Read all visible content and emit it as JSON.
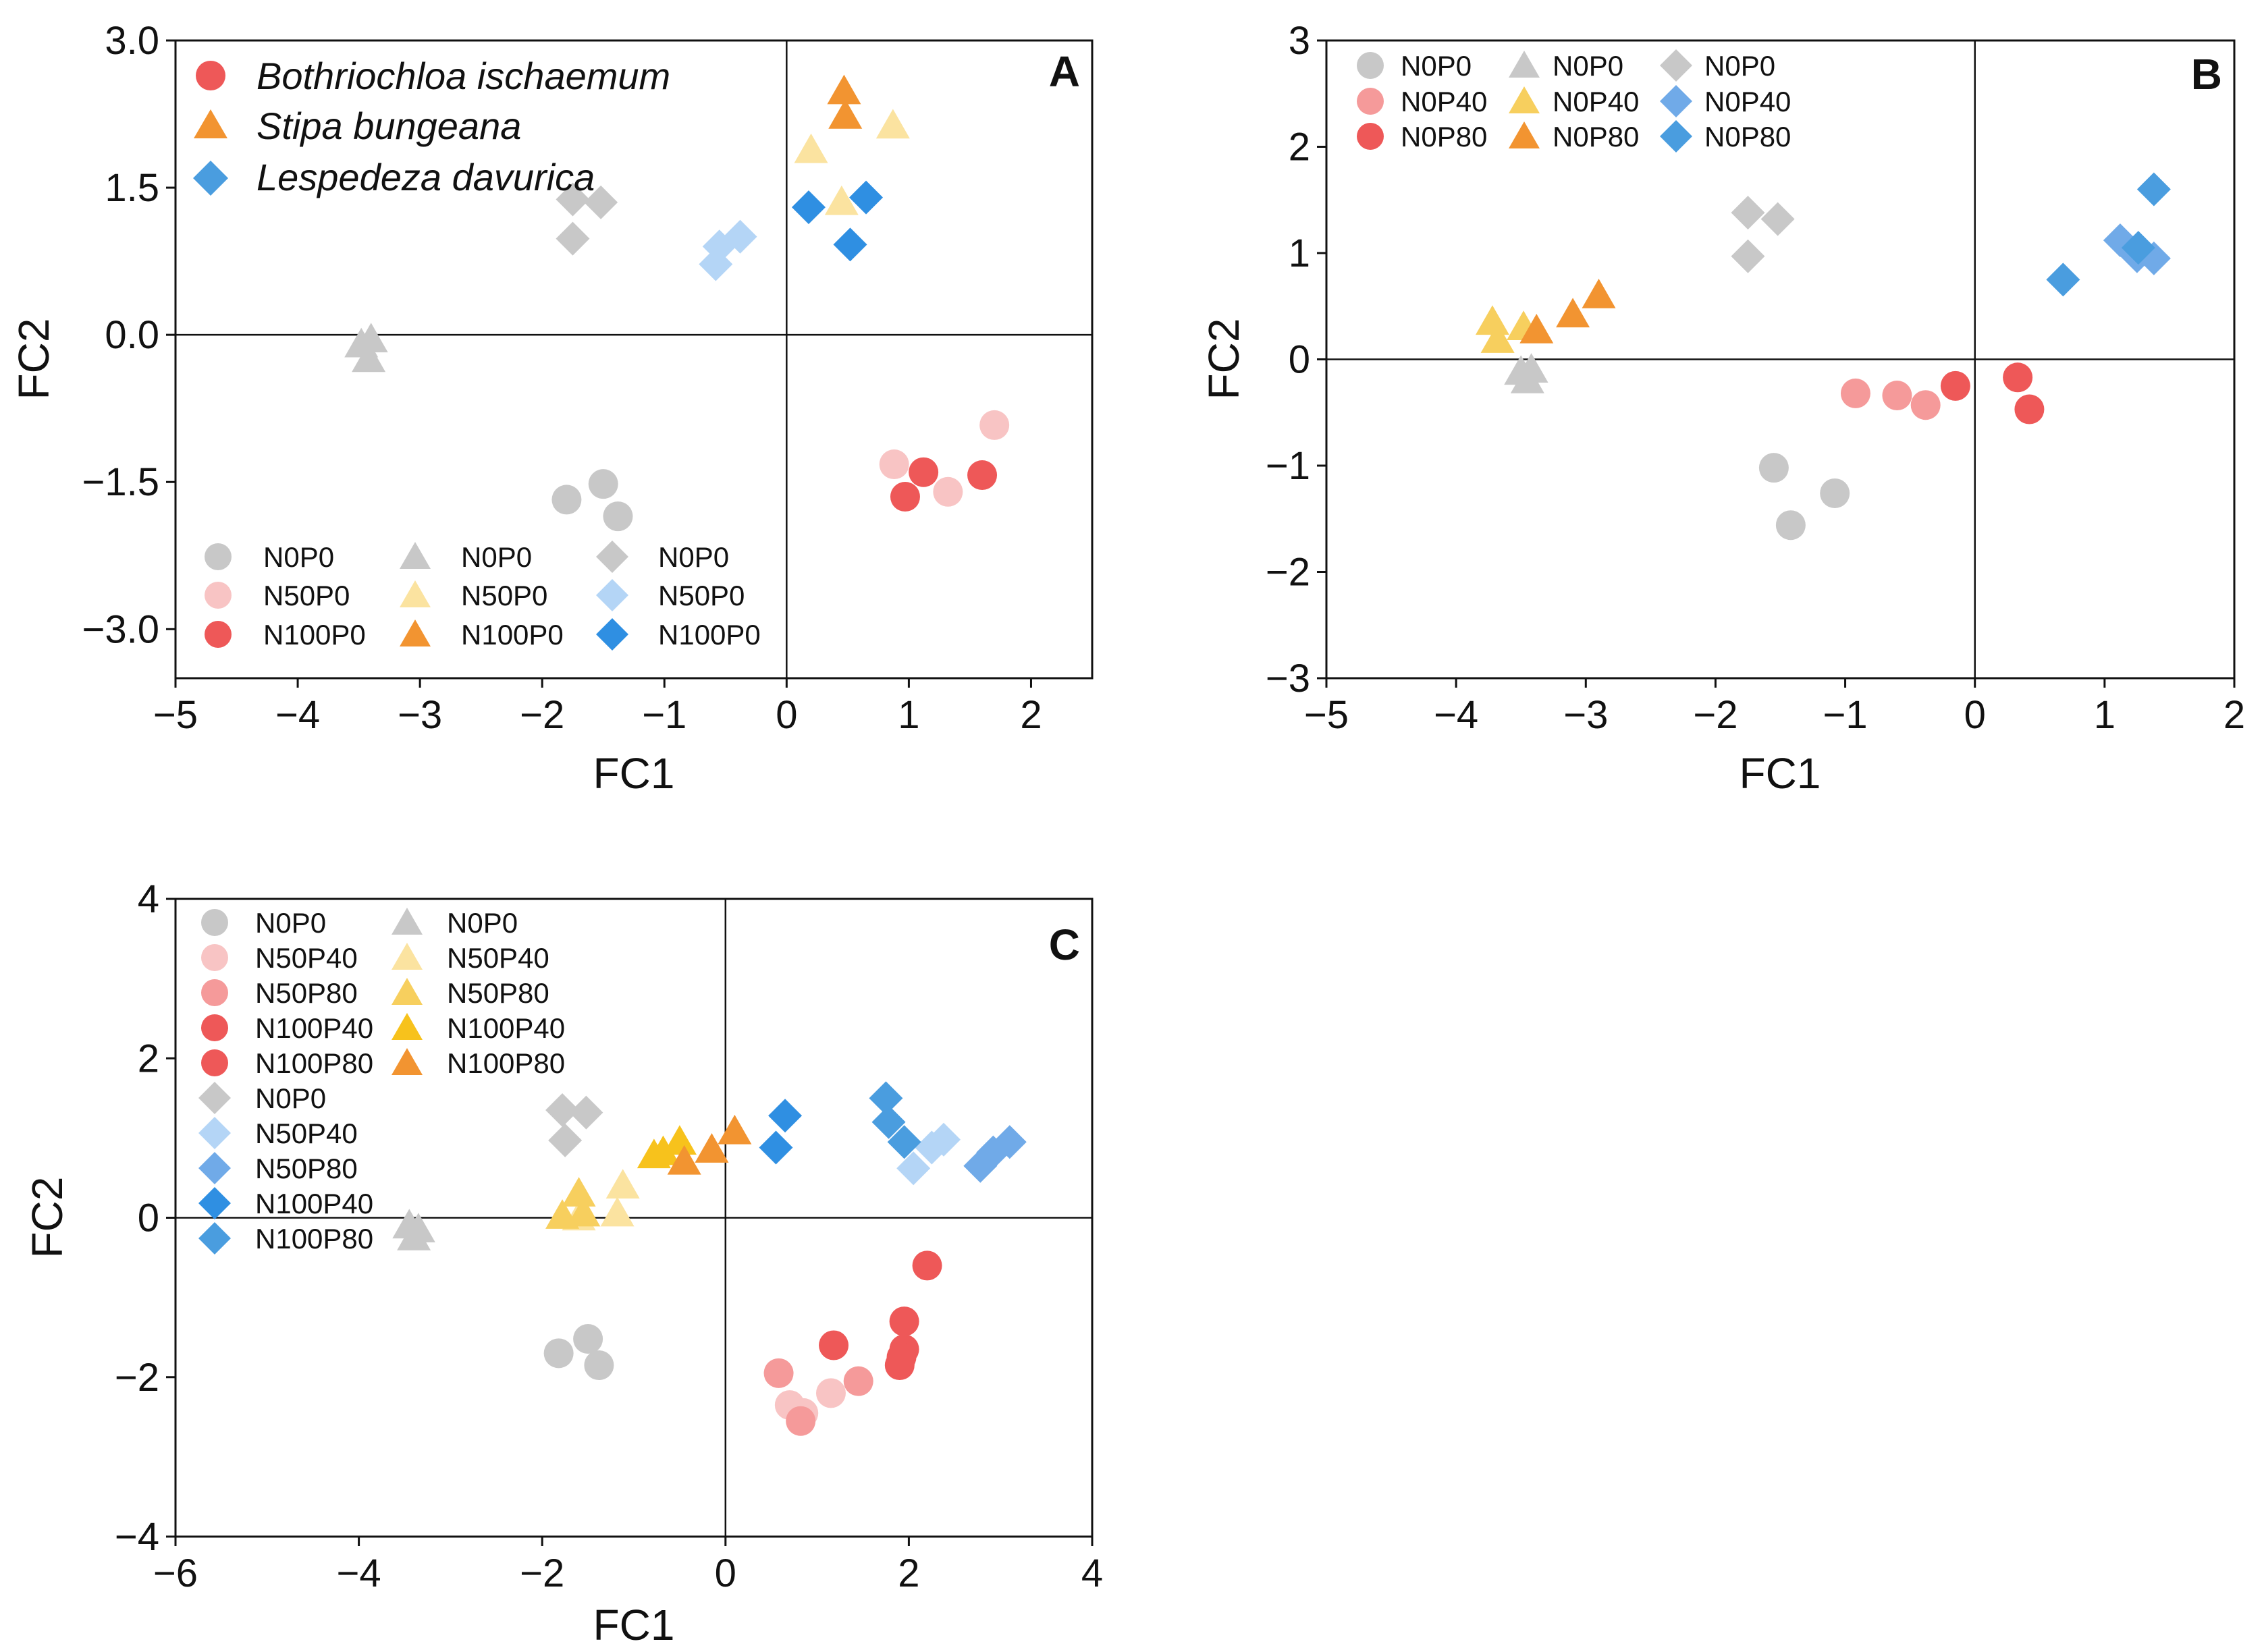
{
  "colors": {
    "gray": "#c8c8c8",
    "pink_light": "#f8c4c4",
    "pink": "#f59a9a",
    "red": "#ee5858",
    "yellow_light": "#fbe3a0",
    "yellow": "#f7cf5e",
    "gold": "#f7c21c",
    "orange": "#f29431",
    "blue_light": "#b4d5f6",
    "blue_mid": "#70aae8",
    "blue": "#2f8fe2",
    "blue_med": "#4a9ddf"
  },
  "chart_data": [
    {
      "id": "A",
      "type": "scatter",
      "panel_label": "A",
      "xlabel": "FC1",
      "ylabel": "FC2",
      "xlim": [
        -5,
        2.5
      ],
      "ylim": [
        -3.5,
        3.0
      ],
      "xticks": [
        -5,
        -4,
        -3,
        -2,
        -1,
        0,
        1,
        2
      ],
      "yticks": [
        -3.0,
        -1.5,
        0.0,
        1.5,
        3.0
      ],
      "xtick_labels": [
        "−5",
        "−4",
        "−3",
        "−2",
        "−1",
        "0",
        "1",
        "2"
      ],
      "ytick_labels": [
        "−3.0",
        "−1.5",
        "0.0",
        "1.5",
        "3.0"
      ],
      "zero_lines": true,
      "species_legend": [
        {
          "label": "Bothriochloa ischaemum",
          "shape": "circle",
          "color": "#ee5858"
        },
        {
          "label": "Stipa bungeana",
          "shape": "triangle",
          "color": "#f29431"
        },
        {
          "label": "Lespedeza davurica",
          "shape": "diamond",
          "color": "#4a9ddf"
        }
      ],
      "treatment_legend": [
        {
          "label": "N0P0",
          "shape": "circle",
          "color": "#c8c8c8"
        },
        {
          "label": "N50P0",
          "shape": "circle",
          "color": "#f8c4c4"
        },
        {
          "label": "N100P0",
          "shape": "circle",
          "color": "#ee5858"
        },
        {
          "label": "N0P0",
          "shape": "triangle",
          "color": "#c8c8c8"
        },
        {
          "label": "N50P0",
          "shape": "triangle",
          "color": "#fbe3a0"
        },
        {
          "label": "N100P0",
          "shape": "triangle",
          "color": "#f29431"
        },
        {
          "label": "N0P0",
          "shape": "diamond",
          "color": "#c8c8c8"
        },
        {
          "label": "N50P0",
          "shape": "diamond",
          "color": "#b4d5f6"
        },
        {
          "label": "N100P0",
          "shape": "diamond",
          "color": "#2f8fe2"
        }
      ],
      "series": [
        {
          "name": "B. ischaemum N0P0",
          "shape": "circle",
          "color": "#c8c8c8",
          "points": [
            [
              -1.8,
              -1.68
            ],
            [
              -1.5,
              -1.52
            ],
            [
              -1.38,
              -1.85
            ]
          ]
        },
        {
          "name": "B. ischaemum N50P0",
          "shape": "circle",
          "color": "#f8c4c4",
          "points": [
            [
              0.88,
              -1.32
            ],
            [
              1.32,
              -1.6
            ],
            [
              1.7,
              -0.92
            ]
          ]
        },
        {
          "name": "B. ischaemum N100P0",
          "shape": "circle",
          "color": "#ee5858",
          "points": [
            [
              0.97,
              -1.65
            ],
            [
              1.12,
              -1.4
            ],
            [
              1.6,
              -1.43
            ]
          ]
        },
        {
          "name": "S. bungeana N0P0",
          "shape": "triangle",
          "color": "#c8c8c8",
          "points": [
            [
              -3.48,
              -0.1
            ],
            [
              -3.42,
              -0.25
            ],
            [
              -3.4,
              -0.05
            ]
          ]
        },
        {
          "name": "S. bungeana N50P0",
          "shape": "triangle",
          "color": "#fbe3a0",
          "points": [
            [
              0.2,
              1.88
            ],
            [
              0.45,
              1.35
            ],
            [
              0.87,
              2.13
            ]
          ]
        },
        {
          "name": "S. bungeana N100P0",
          "shape": "triangle",
          "color": "#f29431",
          "points": [
            [
              0.47,
              2.48
            ],
            [
              0.48,
              2.23
            ]
          ]
        },
        {
          "name": "L. davurica N0P0",
          "shape": "diamond",
          "color": "#c8c8c8",
          "points": [
            [
              -1.75,
              0.98
            ],
            [
              -1.75,
              1.38
            ],
            [
              -1.52,
              1.35
            ]
          ]
        },
        {
          "name": "L. davurica N50P0",
          "shape": "diamond",
          "color": "#b4d5f6",
          "points": [
            [
              -0.58,
              0.72
            ],
            [
              -0.55,
              0.9
            ],
            [
              -0.38,
              1.0
            ]
          ]
        },
        {
          "name": "L. davurica N100P0",
          "shape": "diamond",
          "color": "#2f8fe2",
          "points": [
            [
              0.18,
              1.3
            ],
            [
              0.52,
              0.92
            ],
            [
              0.65,
              1.4
            ]
          ]
        }
      ]
    },
    {
      "id": "B",
      "type": "scatter",
      "panel_label": "B",
      "xlabel": "FC1",
      "ylabel": "FC2",
      "xlim": [
        -5,
        2
      ],
      "ylim": [
        -3,
        3
      ],
      "xticks": [
        -5,
        -4,
        -3,
        -2,
        -1,
        0,
        1,
        2
      ],
      "yticks": [
        -3,
        -2,
        -1,
        0,
        1,
        2,
        3
      ],
      "xtick_labels": [
        "−5",
        "−4",
        "−3",
        "−2",
        "−1",
        "0",
        "1",
        "2"
      ],
      "ytick_labels": [
        "−3",
        "−2",
        "−1",
        "0",
        "1",
        "2",
        "3"
      ],
      "zero_lines": true,
      "treatment_legend": [
        {
          "label": "N0P0",
          "shape": "circle",
          "color": "#c8c8c8"
        },
        {
          "label": "N0P40",
          "shape": "circle",
          "color": "#f59a9a"
        },
        {
          "label": "N0P80",
          "shape": "circle",
          "color": "#ee5858"
        },
        {
          "label": "N0P0",
          "shape": "triangle",
          "color": "#c8c8c8"
        },
        {
          "label": "N0P40",
          "shape": "triangle",
          "color": "#f7cf5e"
        },
        {
          "label": "N0P80",
          "shape": "triangle",
          "color": "#f29431"
        },
        {
          "label": "N0P0",
          "shape": "diamond",
          "color": "#c8c8c8"
        },
        {
          "label": "N0P40",
          "shape": "diamond",
          "color": "#70aae8"
        },
        {
          "label": "N0P80",
          "shape": "diamond",
          "color": "#4a9ddf"
        }
      ],
      "series": [
        {
          "name": "B. ischaemum N0P0",
          "shape": "circle",
          "color": "#c8c8c8",
          "points": [
            [
              -1.55,
              -1.02
            ],
            [
              -1.42,
              -1.56
            ],
            [
              -1.08,
              -1.26
            ]
          ]
        },
        {
          "name": "B. ischaemum N0P40",
          "shape": "circle",
          "color": "#f59a9a",
          "points": [
            [
              -0.92,
              -0.32
            ],
            [
              -0.6,
              -0.34
            ],
            [
              -0.38,
              -0.43
            ]
          ]
        },
        {
          "name": "B. ischaemum N0P80",
          "shape": "circle",
          "color": "#ee5858",
          "points": [
            [
              -0.15,
              -0.25
            ],
            [
              0.33,
              -0.17
            ],
            [
              0.42,
              -0.47
            ]
          ]
        },
        {
          "name": "S. bungeana N0P0",
          "shape": "triangle",
          "color": "#c8c8c8",
          "points": [
            [
              -3.5,
              -0.12
            ],
            [
              -3.45,
              -0.2
            ],
            [
              -3.42,
              -0.1
            ]
          ]
        },
        {
          "name": "S. bungeana N0P40",
          "shape": "triangle",
          "color": "#f7cf5e",
          "points": [
            [
              -3.72,
              0.35
            ],
            [
              -3.68,
              0.18
            ],
            [
              -3.48,
              0.3
            ]
          ]
        },
        {
          "name": "S. bungeana N0P80",
          "shape": "triangle",
          "color": "#f29431",
          "points": [
            [
              -3.38,
              0.27
            ],
            [
              -3.1,
              0.42
            ],
            [
              -2.9,
              0.6
            ]
          ]
        },
        {
          "name": "L. davurica N0P0",
          "shape": "diamond",
          "color": "#c8c8c8",
          "points": [
            [
              -1.75,
              1.38
            ],
            [
              -1.52,
              1.32
            ],
            [
              -1.75,
              0.97
            ]
          ]
        },
        {
          "name": "L. davurica N0P40",
          "shape": "diamond",
          "color": "#70aae8",
          "points": [
            [
              1.12,
              1.12
            ],
            [
              1.25,
              0.97
            ],
            [
              1.38,
              0.95
            ]
          ]
        },
        {
          "name": "L. davurica N0P80",
          "shape": "diamond",
          "color": "#4a9ddf",
          "points": [
            [
              0.68,
              0.75
            ],
            [
              1.38,
              1.6
            ],
            [
              1.26,
              1.05
            ]
          ]
        }
      ]
    },
    {
      "id": "C",
      "type": "scatter",
      "panel_label": "C",
      "xlabel": "FC1",
      "ylabel": "FC2",
      "xlim": [
        -6,
        4
      ],
      "ylim": [
        -4,
        4
      ],
      "xticks": [
        -6,
        -4,
        -2,
        0,
        2,
        4
      ],
      "yticks": [
        -4,
        -2,
        0,
        2,
        4
      ],
      "xtick_labels": [
        "−6",
        "−4",
        "−2",
        "0",
        "2",
        "4"
      ],
      "ytick_labels": [
        "−4",
        "−2",
        "0",
        "2",
        "4"
      ],
      "zero_lines": true,
      "treatment_legend": [
        {
          "label": "N0P0",
          "shape": "circle",
          "color": "#c8c8c8"
        },
        {
          "label": "N50P40",
          "shape": "circle",
          "color": "#f8c4c4"
        },
        {
          "label": "N50P80",
          "shape": "circle",
          "color": "#f59a9a"
        },
        {
          "label": "N100P40",
          "shape": "circle",
          "color": "#ee5858"
        },
        {
          "label": "N100P80",
          "shape": "circle",
          "color": "#ee5858"
        },
        {
          "label": "N0P0",
          "shape": "diamond",
          "color": "#c8c8c8"
        },
        {
          "label": "N50P40",
          "shape": "diamond",
          "color": "#b4d5f6"
        },
        {
          "label": "N50P80",
          "shape": "diamond",
          "color": "#70aae8"
        },
        {
          "label": "N100P40",
          "shape": "diamond",
          "color": "#2f8fe2"
        },
        {
          "label": "N100P80",
          "shape": "diamond",
          "color": "#4a9ddf"
        },
        {
          "label": "N0P0",
          "shape": "triangle",
          "color": "#c8c8c8"
        },
        {
          "label": "N50P40",
          "shape": "triangle",
          "color": "#fbe3a0"
        },
        {
          "label": "N50P80",
          "shape": "triangle",
          "color": "#f7cf5e"
        },
        {
          "label": "N100P40",
          "shape": "triangle",
          "color": "#f7c21c"
        },
        {
          "label": "N100P80",
          "shape": "triangle",
          "color": "#f29431"
        }
      ],
      "series": [
        {
          "name": "B. ischaemum N0P0",
          "shape": "circle",
          "color": "#c8c8c8",
          "points": [
            [
              -1.82,
              -1.7
            ],
            [
              -1.5,
              -1.52
            ],
            [
              -1.38,
              -1.85
            ]
          ]
        },
        {
          "name": "B. ischaemum N50P40",
          "shape": "circle",
          "color": "#f8c4c4",
          "points": [
            [
              0.7,
              -2.35
            ],
            [
              1.15,
              -2.2
            ],
            [
              0.85,
              -2.45
            ]
          ]
        },
        {
          "name": "B. ischaemum N50P80",
          "shape": "circle",
          "color": "#f59a9a",
          "points": [
            [
              0.58,
              -1.95
            ],
            [
              0.82,
              -2.55
            ],
            [
              1.45,
              -2.05
            ]
          ]
        },
        {
          "name": "B. ischaemum N100P40",
          "shape": "circle",
          "color": "#ee5858",
          "points": [
            [
              1.9,
              -1.85
            ],
            [
              1.95,
              -1.3
            ],
            [
              2.2,
              -0.6
            ]
          ]
        },
        {
          "name": "B. ischaemum N100P80",
          "shape": "circle",
          "color": "#ee5858",
          "points": [
            [
              1.18,
              -1.6
            ],
            [
              1.95,
              -1.65
            ],
            [
              1.92,
              -1.75
            ]
          ]
        },
        {
          "name": "S. bungeana N0P0",
          "shape": "triangle",
          "color": "#c8c8c8",
          "points": [
            [
              -3.45,
              -0.1
            ],
            [
              -3.4,
              -0.25
            ],
            [
              -3.35,
              -0.15
            ]
          ]
        },
        {
          "name": "S. bungeana N50P40",
          "shape": "triangle",
          "color": "#fbe3a0",
          "points": [
            [
              -1.6,
              0.0
            ],
            [
              -1.18,
              0.05
            ],
            [
              -1.12,
              0.4
            ]
          ]
        },
        {
          "name": "S. bungeana N50P80",
          "shape": "triangle",
          "color": "#f7cf5e",
          "points": [
            [
              -1.78,
              0.02
            ],
            [
              -1.6,
              0.3
            ],
            [
              -1.55,
              0.05
            ]
          ]
        },
        {
          "name": "S. bungeana N100P40",
          "shape": "triangle",
          "color": "#f7c21c",
          "points": [
            [
              -0.78,
              0.78
            ],
            [
              -0.68,
              0.82
            ],
            [
              -0.5,
              0.95
            ]
          ]
        },
        {
          "name": "S. bungeana N100P80",
          "shape": "triangle",
          "color": "#f29431",
          "points": [
            [
              -0.45,
              0.7
            ],
            [
              -0.15,
              0.85
            ],
            [
              0.1,
              1.08
            ]
          ]
        },
        {
          "name": "L. davurica N0P0",
          "shape": "diamond",
          "color": "#c8c8c8",
          "points": [
            [
              -1.78,
              1.35
            ],
            [
              -1.52,
              1.32
            ],
            [
              -1.75,
              0.97
            ]
          ]
        },
        {
          "name": "L. davurica N50P40",
          "shape": "diamond",
          "color": "#b4d5f6",
          "points": [
            [
              2.05,
              0.62
            ],
            [
              2.25,
              0.88
            ],
            [
              2.38,
              0.98
            ]
          ]
        },
        {
          "name": "L. davurica N50P80",
          "shape": "diamond",
          "color": "#70aae8",
          "points": [
            [
              2.78,
              0.65
            ],
            [
              2.92,
              0.82
            ],
            [
              3.1,
              0.95
            ]
          ]
        },
        {
          "name": "L. davurica N100P40",
          "shape": "diamond",
          "color": "#2f8fe2",
          "points": [
            [
              0.55,
              0.88
            ],
            [
              0.65,
              1.28
            ]
          ]
        },
        {
          "name": "L. davurica N100P80",
          "shape": "diamond",
          "color": "#4a9ddf",
          "points": [
            [
              1.75,
              1.5
            ],
            [
              1.78,
              1.2
            ],
            [
              1.95,
              0.95
            ]
          ]
        }
      ]
    }
  ]
}
